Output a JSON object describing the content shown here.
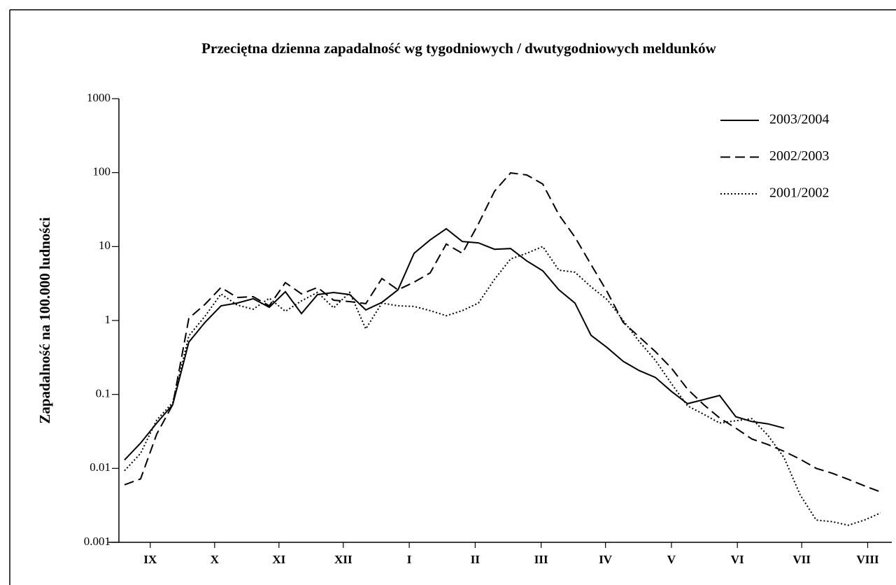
{
  "chart_data": {
    "type": "line",
    "title": "Przeciętna dzienna zapadalność wg tygodniowych / dwutygodniowych meldunków",
    "y_label": "Zapadalność na 100.000 ludności",
    "log_y": true,
    "legend": "upper right",
    "x": [
      1,
      2,
      3,
      4,
      5,
      6,
      7,
      8,
      9,
      10,
      11,
      12,
      13,
      14,
      15,
      16,
      17,
      18,
      19,
      20,
      21,
      22,
      23,
      24,
      25,
      26,
      27,
      28,
      29,
      30,
      31,
      32,
      33,
      34,
      35,
      36,
      37,
      38,
      39,
      40,
      41,
      42,
      43,
      44,
      45,
      46,
      47,
      48
    ],
    "xlim": [
      0.65,
      48.7
    ],
    "xticks": [
      {
        "value": 2.6,
        "label": "IX"
      },
      {
        "value": 6.6,
        "label": "X"
      },
      {
        "value": 10.6,
        "label": "XI"
      },
      {
        "value": 14.6,
        "label": "XII"
      },
      {
        "value": 18.7,
        "label": "I"
      },
      {
        "value": 22.8,
        "label": "II"
      },
      {
        "value": 26.9,
        "label": "III"
      },
      {
        "value": 30.9,
        "label": "IV"
      },
      {
        "value": 35.0,
        "label": "V"
      },
      {
        "value": 39.1,
        "label": "VI"
      },
      {
        "value": 43.1,
        "label": "VII"
      },
      {
        "value": 47.2,
        "label": "VIII"
      }
    ],
    "ylim": [
      0.001,
      1000
    ],
    "yticks": [
      0.001,
      0.01,
      0.1,
      1,
      10,
      100,
      1000
    ],
    "series": [
      {
        "name": "2003/2004",
        "color": "#000000",
        "style": "solid",
        "values": [
          0.013,
          0.022,
          0.041,
          0.073,
          0.51,
          0.94,
          1.58,
          1.72,
          1.97,
          1.51,
          2.45,
          1.24,
          2.24,
          2.39,
          2.24,
          1.39,
          1.76,
          2.6,
          8.1,
          12.3,
          17.4,
          11.7,
          11.2,
          9.2,
          9.4,
          6.4,
          4.7,
          2.6,
          1.72,
          0.63,
          0.43,
          0.28,
          0.21,
          0.17,
          0.11,
          0.075,
          0.085,
          0.097,
          0.05,
          0.043,
          0.04,
          0.035,
          null,
          null,
          null,
          null,
          null,
          null
        ]
      },
      {
        "name": "2002/2003",
        "color": "#000000",
        "style": "dashed",
        "values": [
          0.006,
          0.0072,
          0.029,
          0.073,
          1.07,
          1.65,
          2.8,
          2.05,
          2.1,
          1.58,
          3.25,
          2.29,
          2.8,
          1.88,
          1.8,
          1.69,
          3.7,
          2.6,
          3.3,
          4.4,
          10.8,
          8.1,
          20.3,
          56,
          99,
          93,
          70,
          27,
          13.4,
          5.7,
          2.45,
          0.94,
          0.6,
          0.38,
          0.227,
          0.118,
          0.073,
          0.048,
          0.035,
          0.025,
          0.021,
          0.017,
          0.0133,
          0.01,
          0.0086,
          0.0071,
          0.0058,
          0.0048
        ]
      },
      {
        "name": "2001/2002",
        "color": "#000000",
        "style": "dotted",
        "values": [
          0.0093,
          0.016,
          0.045,
          0.078,
          0.62,
          1.14,
          2.29,
          1.62,
          1.42,
          2.0,
          1.33,
          1.84,
          2.4,
          1.48,
          2.4,
          0.77,
          1.72,
          1.58,
          1.55,
          1.36,
          1.16,
          1.36,
          1.72,
          3.6,
          6.8,
          8.1,
          10,
          4.8,
          4.5,
          2.85,
          1.92,
          1.0,
          0.52,
          0.29,
          0.14,
          0.07,
          0.054,
          0.041,
          0.044,
          0.047,
          0.028,
          0.014,
          0.0044,
          0.002,
          0.0019,
          0.0017,
          0.002,
          0.0025
        ]
      }
    ]
  }
}
